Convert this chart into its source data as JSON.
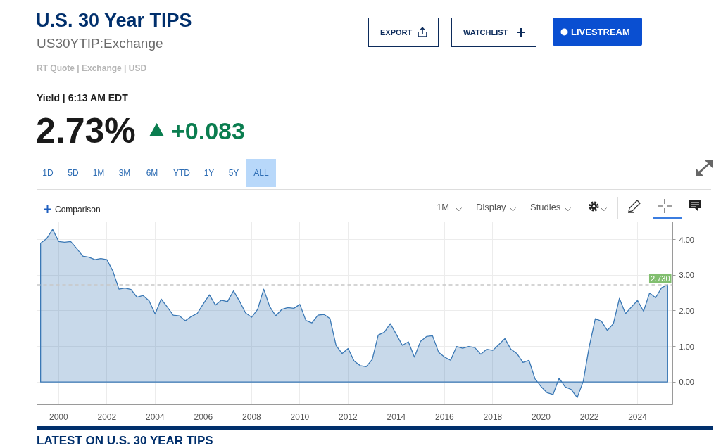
{
  "chart_data": {
    "type": "area",
    "title": "U.S. 30 Year TIPS",
    "subtitle": "US30YTIP:Exchange",
    "x": [
      1999.25,
      1999.5,
      1999.75,
      2000,
      2000.25,
      2000.5,
      2000.75,
      2001,
      2001.25,
      2001.5,
      2001.75,
      2002,
      2002.25,
      2002.5,
      2002.75,
      2003,
      2003.25,
      2003.5,
      2003.75,
      2004,
      2004.25,
      2004.5,
      2004.75,
      2005,
      2005.25,
      2005.5,
      2005.75,
      2006,
      2006.25,
      2006.5,
      2006.75,
      2007,
      2007.25,
      2007.5,
      2007.75,
      2008,
      2008.25,
      2008.5,
      2008.75,
      2009,
      2009.25,
      2009.5,
      2009.75,
      2010,
      2010.25,
      2010.5,
      2010.75,
      2011,
      2011.25,
      2011.5,
      2011.75,
      2012,
      2012.25,
      2012.5,
      2012.75,
      2013,
      2013.25,
      2013.5,
      2013.75,
      2014,
      2014.25,
      2014.5,
      2014.75,
      2015,
      2015.25,
      2015.5,
      2015.75,
      2016,
      2016.25,
      2016.5,
      2016.75,
      2017,
      2017.25,
      2017.5,
      2017.75,
      2018,
      2018.25,
      2018.5,
      2018.75,
      2019,
      2019.25,
      2019.5,
      2019.75,
      2020,
      2020.25,
      2020.5,
      2020.75,
      2021,
      2021.25,
      2021.5,
      2021.75,
      2022,
      2022.25,
      2022.5,
      2022.75,
      2023,
      2023.25,
      2023.5,
      2023.75,
      2024,
      2024.25,
      2024.5,
      2024.75,
      2025,
      2025.25
    ],
    "values": [
      3.9,
      4.03,
      4.29,
      3.95,
      3.93,
      3.95,
      3.75,
      3.54,
      3.51,
      3.44,
      3.47,
      3.44,
      3.11,
      2.61,
      2.64,
      2.6,
      2.38,
      2.43,
      2.28,
      1.91,
      2.33,
      2.11,
      1.88,
      1.86,
      1.72,
      1.84,
      1.93,
      2.2,
      2.45,
      2.16,
      2.3,
      2.26,
      2.56,
      2.27,
      1.94,
      1.82,
      2.04,
      2.61,
      2.12,
      1.86,
      2.04,
      2.09,
      2.07,
      2.18,
      1.73,
      1.66,
      1.88,
      1.9,
      1.78,
      1.03,
      0.8,
      0.94,
      0.59,
      0.46,
      0.43,
      0.63,
      1.32,
      1.4,
      1.64,
      1.34,
      1.03,
      1.13,
      0.7,
      1.14,
      1.28,
      1.3,
      0.84,
      0.7,
      0.61,
      1.0,
      0.95,
      1.0,
      0.97,
      0.78,
      0.92,
      0.89,
      1.05,
      1.22,
      0.92,
      0.8,
      0.55,
      0.61,
      0.09,
      -0.13,
      -0.3,
      -0.35,
      0.11,
      -0.14,
      -0.21,
      -0.44,
      0.02,
      1.0,
      1.78,
      1.71,
      1.45,
      1.64,
      2.35,
      1.92,
      2.11,
      2.29,
      1.99,
      2.5,
      2.37,
      2.65,
      2.73
    ],
    "color": "#3a78b5",
    "xlim": [
      1999.1,
      2025.46
    ],
    "xticks": [
      2000,
      2002,
      2004,
      2006,
      2008,
      2010,
      2012,
      2014,
      2016,
      2018,
      2020,
      2022,
      2024
    ],
    "ylim": [
      -0.64,
      4.5
    ],
    "yticks": [
      {
        "value": 0,
        "label": "0.00"
      },
      {
        "value": 1,
        "label": "1.00"
      },
      {
        "value": 2,
        "label": "2.00"
      },
      {
        "value": 3,
        "label": "3.00"
      },
      {
        "value": 4,
        "label": "4.00"
      }
    ],
    "grid": true,
    "ref_lines": [
      {
        "axis": "y",
        "value": 2.73,
        "label": "2.730",
        "color": "#c8c8c8",
        "line_style": "dashed"
      }
    ],
    "annotations": [
      "RT Quote | Exchange | USD",
      "Yield | 6:13 AM EDT",
      "2.73%",
      "+0.083",
      "EXPORT",
      "WATCHLIST",
      "LIVESTREAM",
      "1D",
      "5D",
      "1M",
      "3M",
      "6M",
      "YTD",
      "1Y",
      "5Y",
      "ALL",
      "Comparison",
      "1M",
      "Display",
      "Studies",
      "LATEST ON U.S. 30 YEAR TIPS"
    ]
  }
}
